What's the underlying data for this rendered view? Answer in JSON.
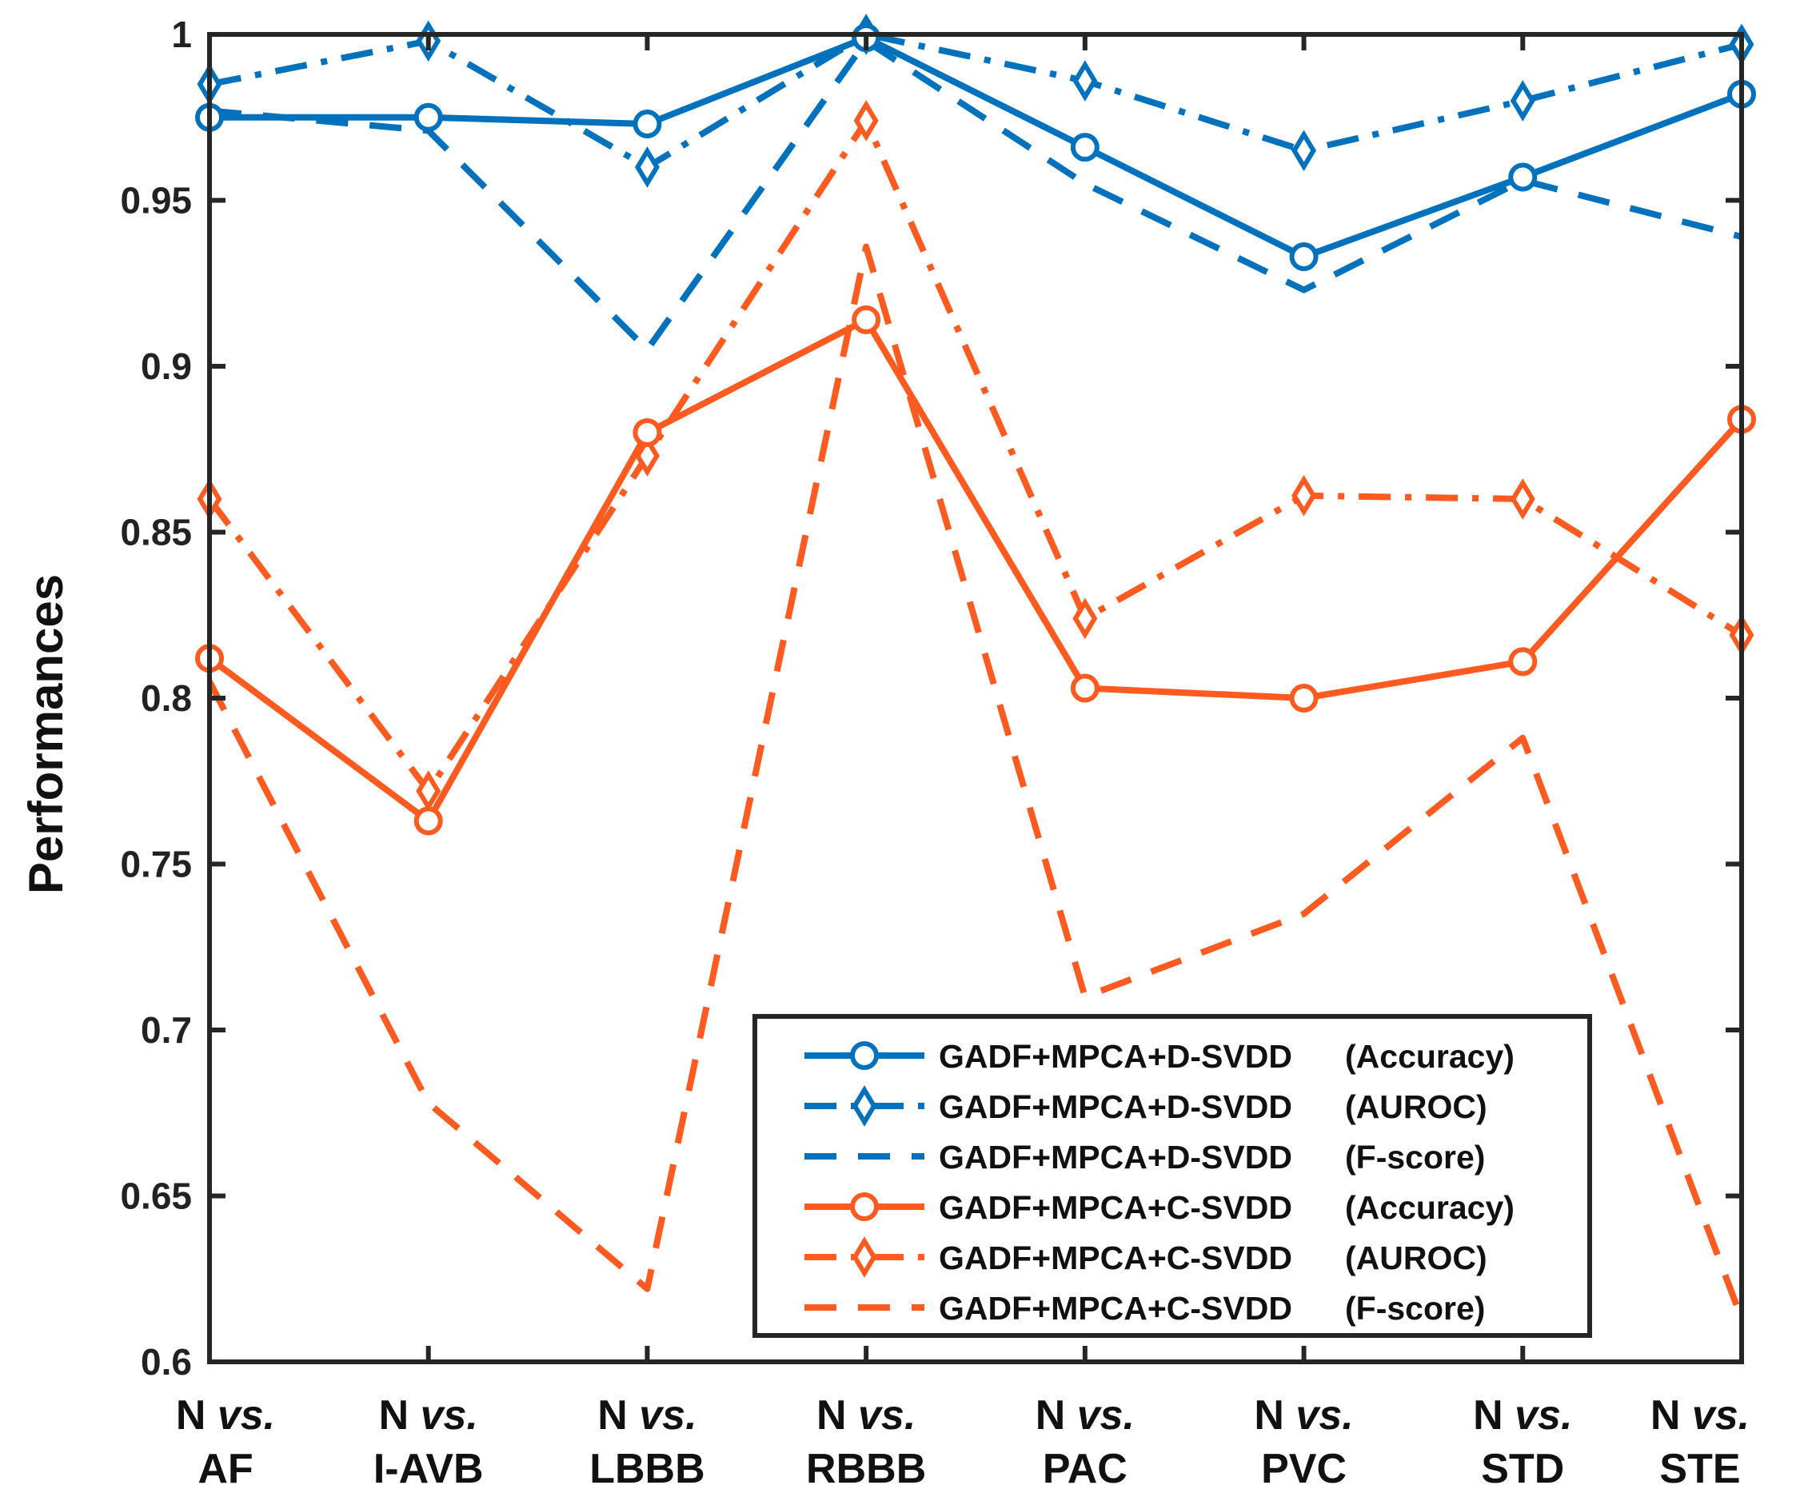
{
  "chart_data": {
    "type": "line",
    "title": "",
    "xlabel": "",
    "ylabel": "Performances",
    "ylim": [
      0.6,
      1.0
    ],
    "yticks": [
      0.6,
      0.65,
      0.7,
      0.75,
      0.8,
      0.85,
      0.9,
      0.95,
      1
    ],
    "ytick_labels": [
      "0.6",
      "0.65",
      "0.7",
      "0.75",
      "0.8",
      "0.85",
      "0.9",
      "0.95",
      "1"
    ],
    "categories": [
      {
        "prefix": "N",
        "vs": "vs.",
        "name": "AF"
      },
      {
        "prefix": "N",
        "vs": "vs.",
        "name": "I-AVB"
      },
      {
        "prefix": "N",
        "vs": "vs.",
        "name": "LBBB"
      },
      {
        "prefix": "N",
        "vs": "vs.",
        "name": "RBBB"
      },
      {
        "prefix": "N",
        "vs": "vs.",
        "name": "PAC"
      },
      {
        "prefix": "N",
        "vs": "vs.",
        "name": "PVC"
      },
      {
        "prefix": "N",
        "vs": "vs.",
        "name": "STD"
      },
      {
        "prefix": "N",
        "vs": "vs.",
        "name": "STE"
      }
    ],
    "series": [
      {
        "name": "GADF+MPCA+D-SVDD",
        "metric": "(Accuracy)",
        "color": "#0072BD",
        "style": "solid",
        "marker": "circle",
        "values": [
          0.975,
          0.975,
          0.973,
          0.999,
          0.966,
          0.933,
          0.957,
          0.982
        ]
      },
      {
        "name": "GADF+MPCA+D-SVDD",
        "metric": "(AUROC)",
        "color": "#0072BD",
        "style": "dashdot",
        "marker": "diamond",
        "values": [
          0.985,
          0.998,
          0.96,
          1.0,
          0.986,
          0.965,
          0.98,
          0.997
        ]
      },
      {
        "name": "GADF+MPCA+D-SVDD",
        "metric": "(F-score)",
        "color": "#0072BD",
        "style": "dashed",
        "marker": "none",
        "values": [
          0.977,
          0.971,
          0.905,
          0.998,
          0.955,
          0.923,
          0.956,
          0.939
        ]
      },
      {
        "name": "GADF+MPCA+C-SVDD",
        "metric": "(Accuracy)",
        "color": "#FF5A1F",
        "style": "solid",
        "marker": "circle",
        "values": [
          0.812,
          0.763,
          0.88,
          0.914,
          0.803,
          0.8,
          0.811,
          0.884
        ]
      },
      {
        "name": "GADF+MPCA+C-SVDD",
        "metric": "(AUROC)",
        "color": "#FF5A1F",
        "style": "dashdot",
        "marker": "diamond",
        "values": [
          0.86,
          0.772,
          0.873,
          0.974,
          0.824,
          0.861,
          0.86,
          0.819
        ]
      },
      {
        "name": "GADF+MPCA+C-SVDD",
        "metric": "(F-score)",
        "color": "#FF5A1F",
        "style": "dashed",
        "marker": "none",
        "values": [
          0.805,
          0.678,
          0.622,
          0.936,
          0.71,
          0.735,
          0.788,
          0.613
        ]
      }
    ],
    "legend_position": "bottom-right",
    "grid": false
  }
}
